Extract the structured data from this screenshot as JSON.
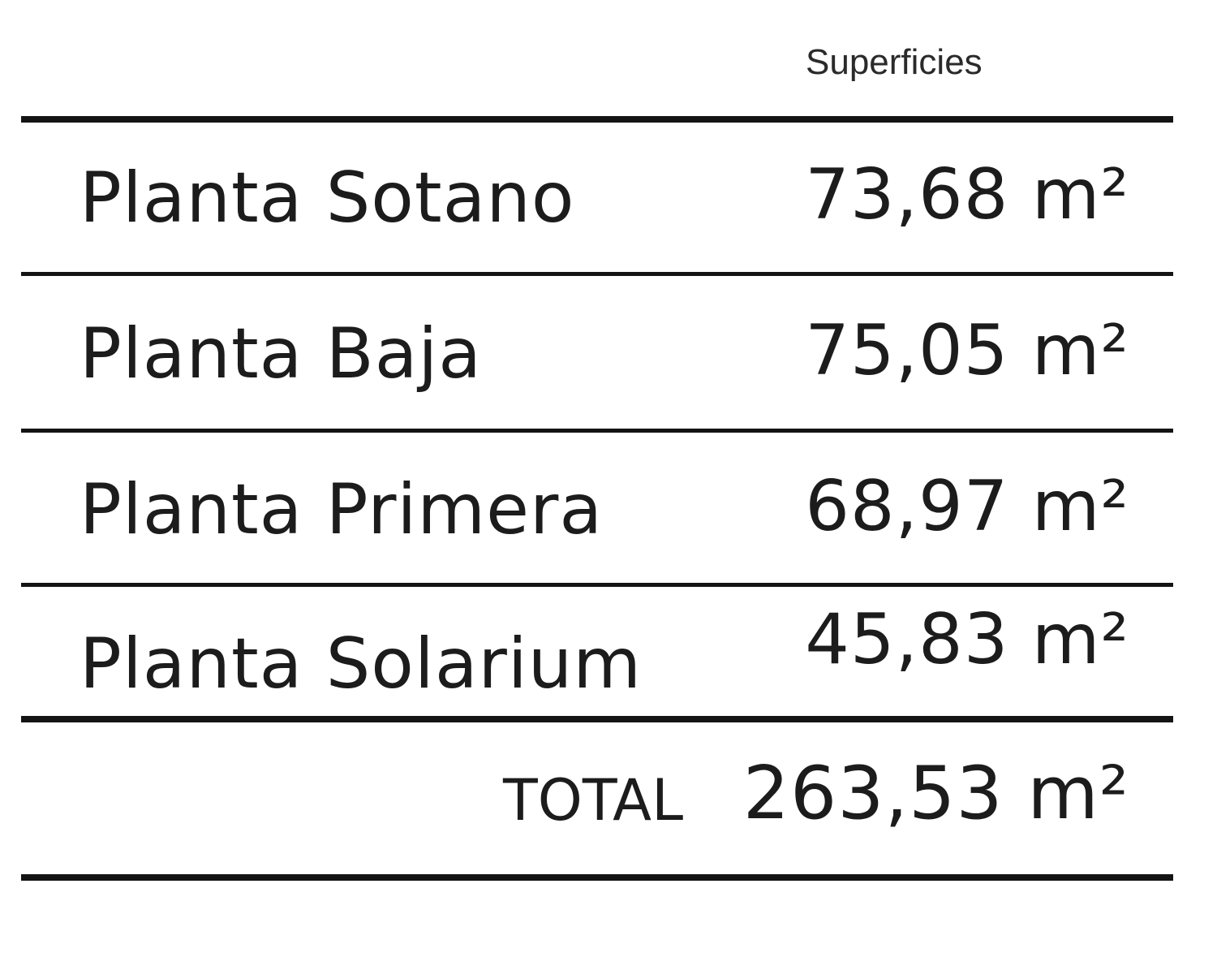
{
  "table": {
    "header": "Superficies",
    "rows": [
      {
        "label": "Planta Sotano",
        "value": "73,68 m²"
      },
      {
        "label": "Planta Baja",
        "value": "75,05 m²"
      },
      {
        "label": "Planta Primera",
        "value": "68,97 m²"
      },
      {
        "label": "Planta Solarium",
        "value": "45,83 m²"
      }
    ],
    "total_label": "TOTAL",
    "total_value": "263,53 m²"
  }
}
